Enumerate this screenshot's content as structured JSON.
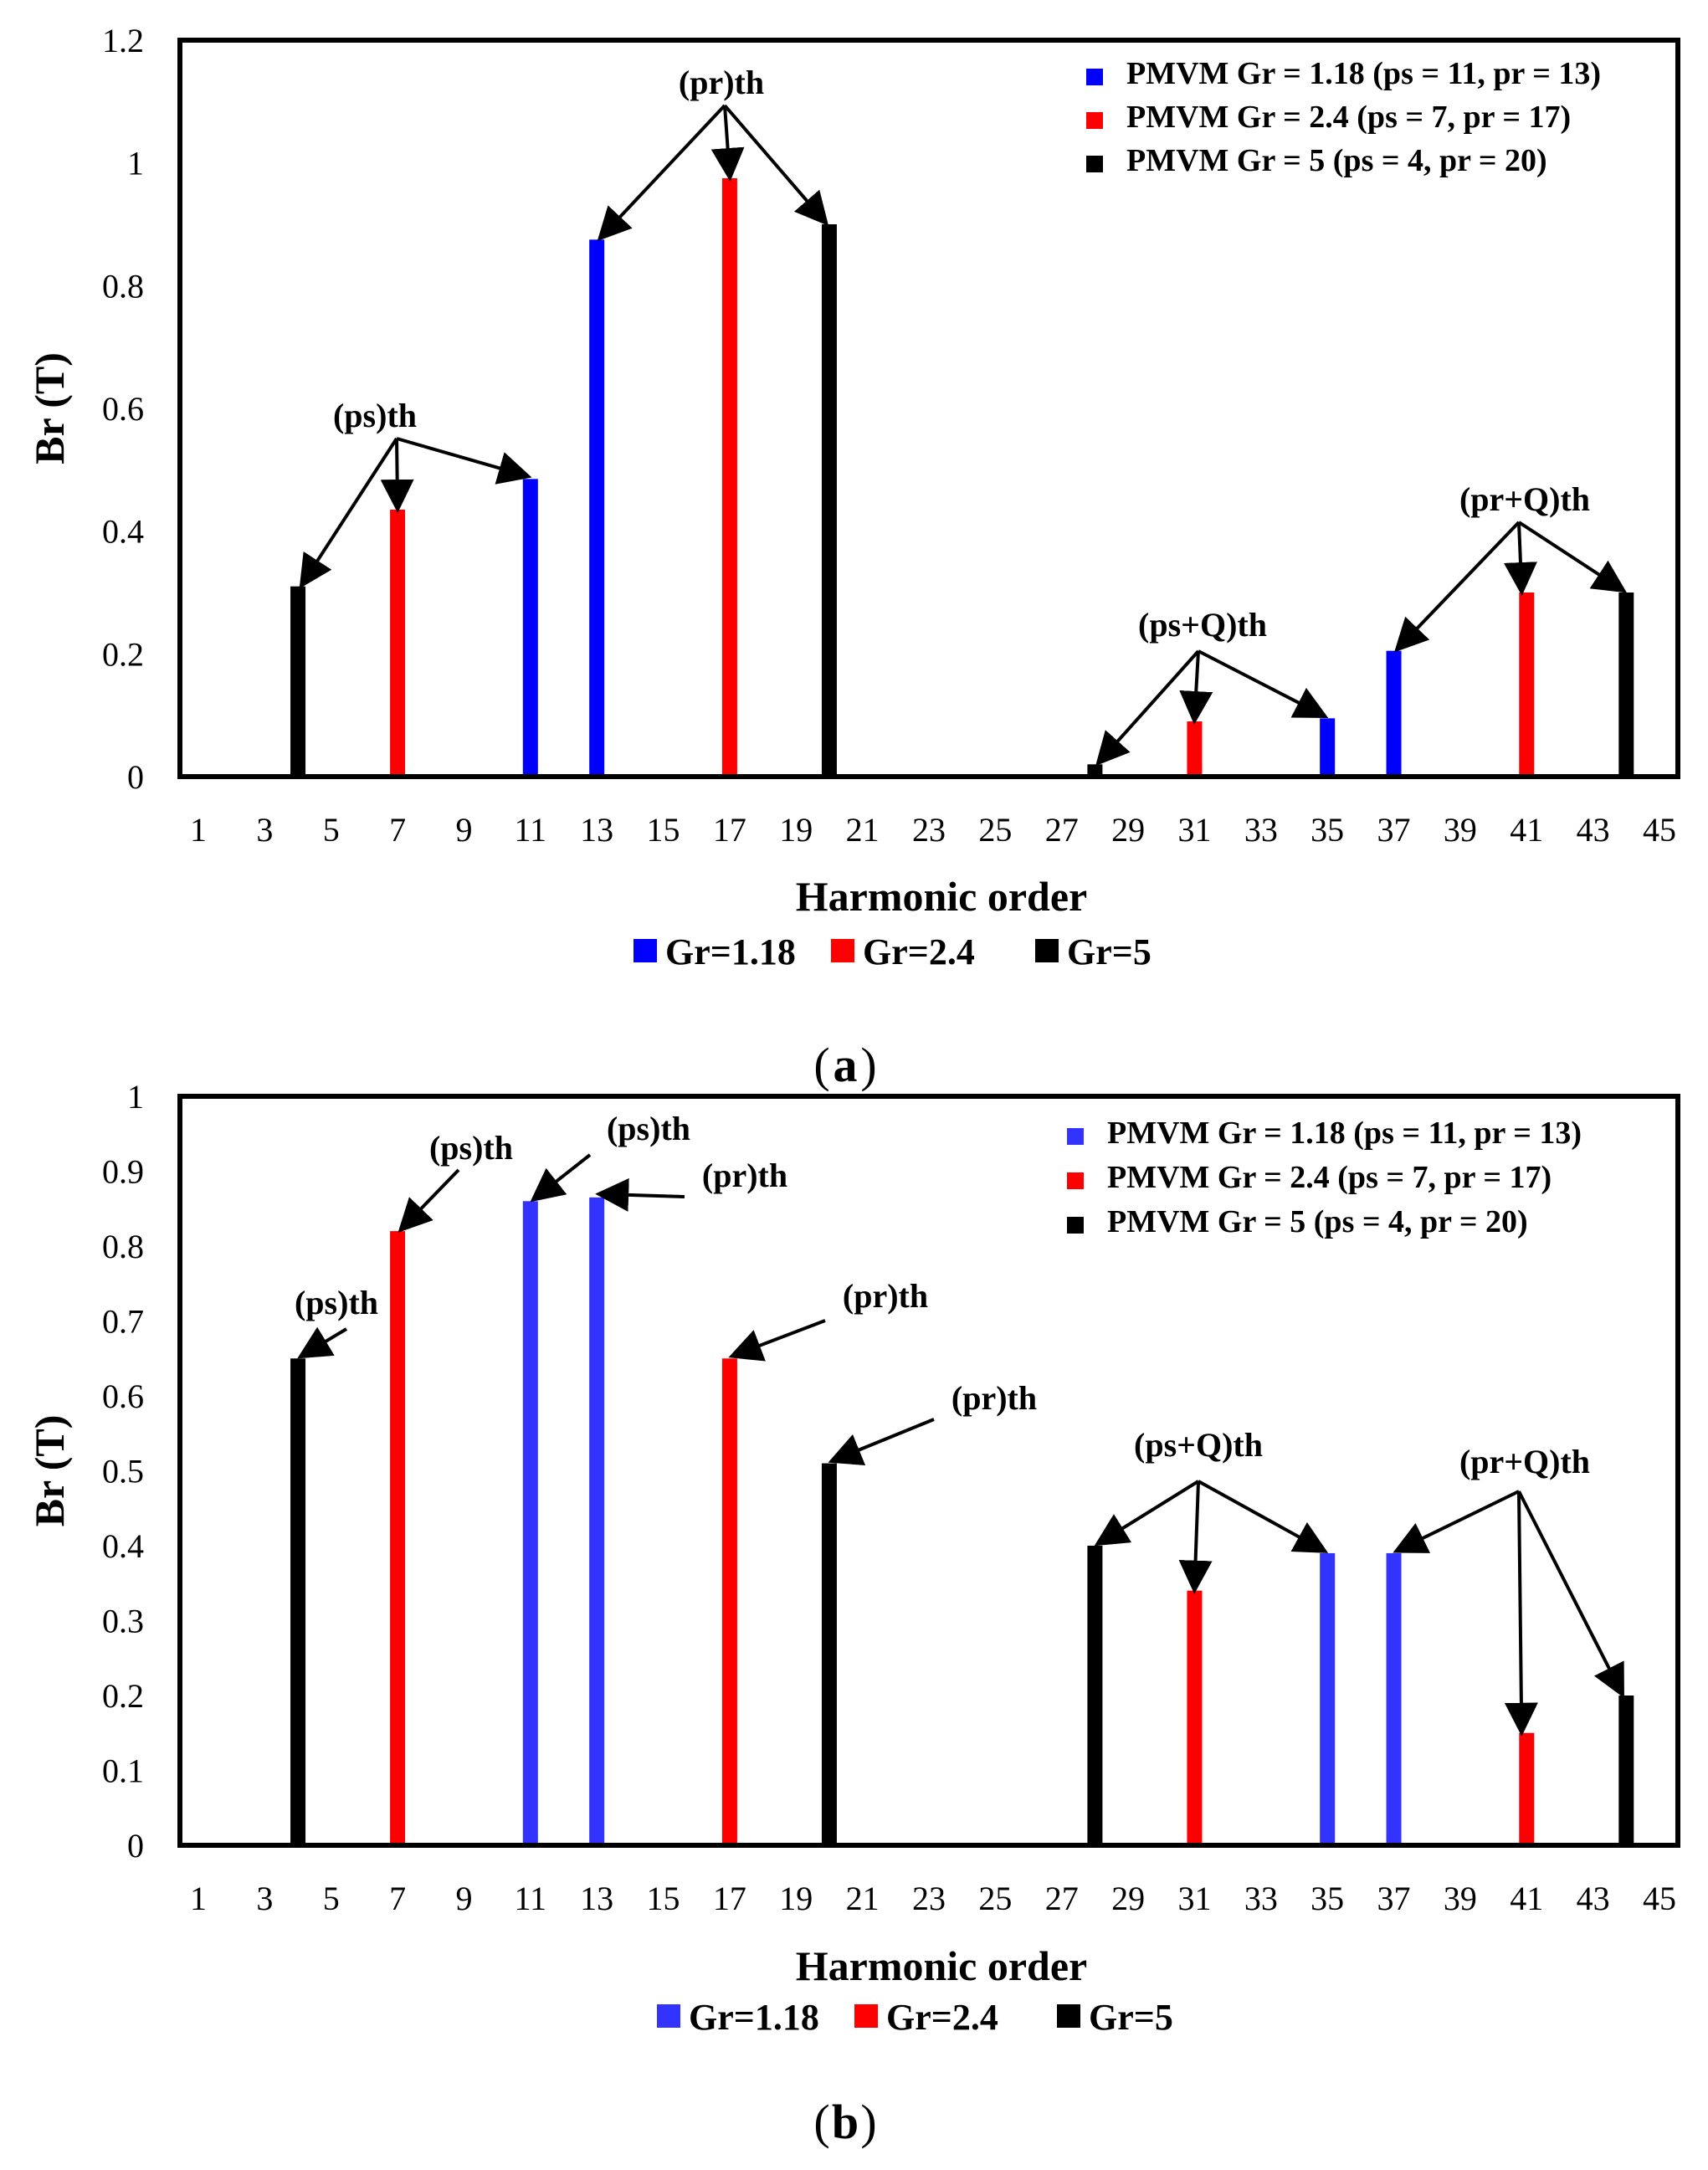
{
  "colors": {
    "blue_a": "#0000ff",
    "blue_b": "#3333ff",
    "red": "#ff0000",
    "black": "#000000"
  },
  "chart_data": [
    {
      "type": "bar",
      "caption": "a",
      "xlabel": "Harmonic order",
      "ylabel": "Br (T)",
      "ylim": [
        0,
        1.2
      ],
      "yticks": [
        "0",
        "0.2",
        "0.4",
        "0.6",
        "0.8",
        "1",
        "1.2"
      ],
      "ytick_values": [
        0,
        0.2,
        0.4,
        0.6,
        0.8,
        1.0,
        1.2
      ],
      "x_range": [
        1,
        45
      ],
      "xticks": [
        "1",
        "3",
        "5",
        "7",
        "9",
        "11",
        "13",
        "15",
        "17",
        "19",
        "21",
        "23",
        "25",
        "27",
        "29",
        "31",
        "33",
        "35",
        "37",
        "39",
        "41",
        "43",
        "45"
      ],
      "bars": [
        {
          "x": 4,
          "value": 0.31,
          "series": "Gr=5"
        },
        {
          "x": 7,
          "value": 0.435,
          "series": "Gr=2.4"
        },
        {
          "x": 11,
          "value": 0.485,
          "series": "Gr=1.18"
        },
        {
          "x": 13,
          "value": 0.875,
          "series": "Gr=1.18"
        },
        {
          "x": 17,
          "value": 0.975,
          "series": "Gr=2.4"
        },
        {
          "x": 20,
          "value": 0.9,
          "series": "Gr=5"
        },
        {
          "x": 28,
          "value": 0.02,
          "series": "Gr=5"
        },
        {
          "x": 31,
          "value": 0.09,
          "series": "Gr=2.4"
        },
        {
          "x": 35,
          "value": 0.095,
          "series": "Gr=1.18"
        },
        {
          "x": 37,
          "value": 0.205,
          "series": "Gr=1.18"
        },
        {
          "x": 41,
          "value": 0.3,
          "series": "Gr=2.4"
        },
        {
          "x": 44,
          "value": 0.3,
          "series": "Gr=5"
        }
      ],
      "legend_inside": [
        {
          "label": "PMVM Gr = 1.18 (ps = 11, pr = 13)",
          "series": "Gr=1.18"
        },
        {
          "label": "PMVM Gr = 2.4 (ps = 7, pr = 17)",
          "series": "Gr=2.4"
        },
        {
          "label": "PMVM Gr = 5 (ps = 4, pr = 20)",
          "series": "Gr=5"
        }
      ],
      "legend_bottom": [
        {
          "label": "Gr=1.18",
          "series": "Gr=1.18"
        },
        {
          "label": "Gr=2.4",
          "series": "Gr=2.4"
        },
        {
          "label": "Gr=5",
          "series": "Gr=5"
        }
      ],
      "annotations": [
        {
          "text": "(ps)th",
          "targets": [
            0,
            1,
            2
          ]
        },
        {
          "text": "(pr)th",
          "targets": [
            3,
            4,
            5
          ]
        },
        {
          "text": "(ps+Q)th",
          "targets": [
            6,
            7,
            8
          ]
        },
        {
          "text": "(pr+Q)th",
          "targets": [
            9,
            10,
            11
          ]
        }
      ]
    },
    {
      "type": "bar",
      "caption": "b",
      "xlabel": "Harmonic order",
      "ylabel": "Br (T)",
      "ylim": [
        0,
        1
      ],
      "yticks": [
        "0",
        "0.1",
        "0.2",
        "0.3",
        "0.4",
        "0.5",
        "0.6",
        "0.7",
        "0.8",
        "0.9",
        "1"
      ],
      "ytick_values": [
        0,
        0.1,
        0.2,
        0.3,
        0.4,
        0.5,
        0.6,
        0.7,
        0.8,
        0.9,
        1.0
      ],
      "x_range": [
        1,
        45
      ],
      "xticks": [
        "1",
        "3",
        "5",
        "7",
        "9",
        "11",
        "13",
        "15",
        "17",
        "19",
        "21",
        "23",
        "25",
        "27",
        "29",
        "31",
        "33",
        "35",
        "37",
        "39",
        "41",
        "43",
        "45"
      ],
      "bars": [
        {
          "x": 4,
          "value": 0.65,
          "series": "Gr=5"
        },
        {
          "x": 7,
          "value": 0.82,
          "series": "Gr=2.4"
        },
        {
          "x": 11,
          "value": 0.86,
          "series": "Gr=1.18"
        },
        {
          "x": 13,
          "value": 0.865,
          "series": "Gr=1.18"
        },
        {
          "x": 17,
          "value": 0.65,
          "series": "Gr=2.4"
        },
        {
          "x": 20,
          "value": 0.51,
          "series": "Gr=5"
        },
        {
          "x": 28,
          "value": 0.4,
          "series": "Gr=5"
        },
        {
          "x": 31,
          "value": 0.34,
          "series": "Gr=2.4"
        },
        {
          "x": 35,
          "value": 0.39,
          "series": "Gr=1.18"
        },
        {
          "x": 37,
          "value": 0.39,
          "series": "Gr=1.18"
        },
        {
          "x": 41,
          "value": 0.15,
          "series": "Gr=2.4"
        },
        {
          "x": 44,
          "value": 0.2,
          "series": "Gr=5"
        }
      ],
      "legend_inside": [
        {
          "label": "PMVM Gr = 1.18 (ps = 11, pr = 13)",
          "series": "Gr=1.18"
        },
        {
          "label": "PMVM Gr = 2.4 (ps = 7, pr = 17)",
          "series": "Gr=2.4"
        },
        {
          "label": "PMVM Gr = 5 (ps = 4, pr = 20)",
          "series": "Gr=5"
        }
      ],
      "legend_bottom": [
        {
          "label": "Gr=1.18",
          "series": "Gr=1.18"
        },
        {
          "label": "Gr=2.4",
          "series": "Gr=2.4"
        },
        {
          "label": "Gr=5",
          "series": "Gr=5"
        }
      ],
      "annotations": [
        {
          "text": "(ps)th",
          "targets": [
            0
          ]
        },
        {
          "text": "(ps)th",
          "targets": [
            1
          ]
        },
        {
          "text": "(ps)th",
          "targets": [
            2
          ]
        },
        {
          "text": "(pr)th",
          "targets": [
            3
          ]
        },
        {
          "text": "(pr)th",
          "targets": [
            4
          ]
        },
        {
          "text": "(pr)th",
          "targets": [
            5
          ]
        },
        {
          "text": "(ps+Q)th",
          "targets": [
            6,
            7,
            8
          ]
        },
        {
          "text": "(pr+Q)th",
          "targets": [
            9,
            10,
            11
          ]
        }
      ]
    }
  ]
}
